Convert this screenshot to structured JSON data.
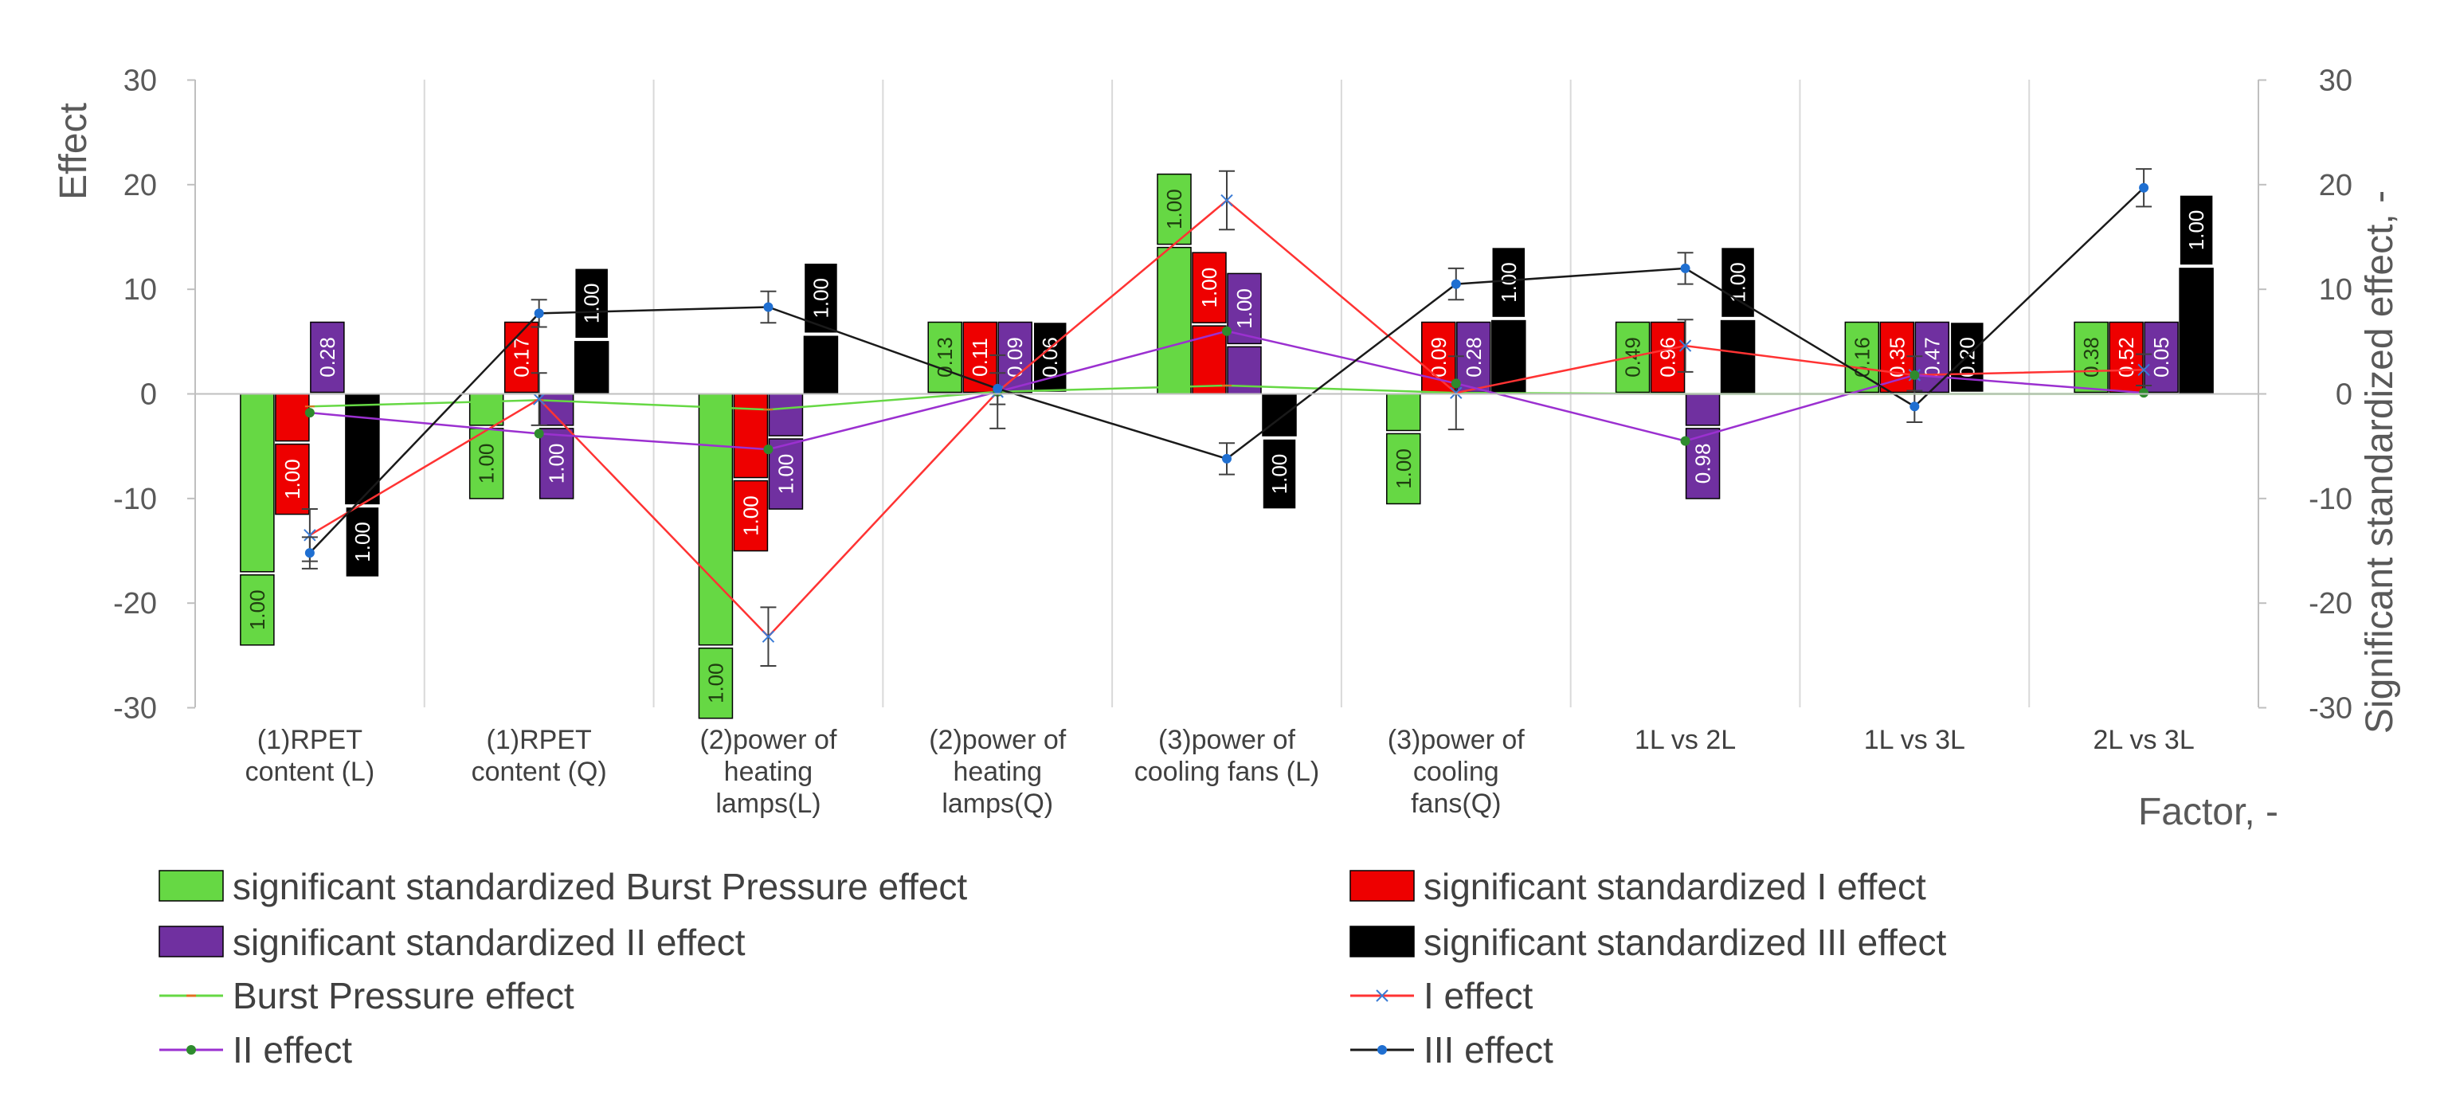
{
  "chart_data": {
    "type": "bar",
    "y_axis_title": "Effect",
    "y2_axis_title": "Significant standardized effect, -",
    "x_axis_title": "Factor, -",
    "ylim": [
      -30,
      30
    ],
    "y2lim": [
      -30,
      30
    ],
    "yticks": [
      30,
      20,
      10,
      0,
      -10,
      -20,
      -30
    ],
    "y2ticks": [
      30,
      20,
      10,
      0,
      -10,
      -20,
      -30
    ],
    "categories": [
      [
        "(1)RPET",
        "content (L)"
      ],
      [
        "(1)RPET",
        "content (Q)"
      ],
      [
        "(2)power of",
        "heating",
        "lamps(L)"
      ],
      [
        "(2)power of",
        "heating",
        "lamps(Q)"
      ],
      [
        "(3)power of",
        "cooling fans (L)"
      ],
      [
        "(3)power of",
        "cooling",
        "fans(Q)"
      ],
      [
        "1L vs 2L"
      ],
      [
        "1L vs 3L"
      ],
      [
        "2L vs 3L"
      ]
    ],
    "bar_series": [
      {
        "name": "significant standardized Burst Pressure effect",
        "color": "#66d844",
        "values": [
          -17,
          -3,
          -24,
          0,
          14,
          -3.5,
          0,
          0,
          0
        ],
        "labels": [
          "1.00",
          "1.00",
          "1.00",
          "0.13",
          "1.00",
          "1.00",
          "0.49",
          "0.16",
          "0.38"
        ]
      },
      {
        "name": "significant standardized I effect",
        "color": "#ee0000",
        "values": [
          -4.5,
          0,
          -8,
          0,
          6.5,
          0,
          0,
          0,
          0
        ],
        "labels": [
          "1.00",
          "0.17",
          "1.00",
          "0.11",
          "1.00",
          "0.09",
          "0.96",
          "0.35",
          "0.52"
        ]
      },
      {
        "name": "significant standardized II effect",
        "color": "#7030a0",
        "values": [
          0,
          -3,
          -4,
          0,
          4.5,
          0,
          -3,
          0,
          0
        ],
        "labels": [
          "0.28",
          "1.00",
          "1.00",
          "0.09",
          "1.00",
          "0.28",
          "0.98",
          "0.47",
          "0.05"
        ]
      },
      {
        "name": "significant standardized III effect",
        "color": "#000000",
        "values": [
          -10.5,
          5,
          5.5,
          0,
          -4,
          7,
          7,
          0,
          12
        ],
        "labels": [
          "1.00",
          "1.00",
          "1.00",
          "0.06",
          "1.00",
          "1.00",
          "1.00",
          "0.20",
          "1.00"
        ]
      }
    ],
    "line_series": [
      {
        "name": "Burst Pressure effect",
        "color": "#66d844",
        "marker": "dash",
        "values": [
          -1.2,
          -0.6,
          -1.5,
          0.2,
          0.8,
          0.1,
          0,
          0,
          0
        ],
        "errors": [
          0,
          0,
          0,
          0,
          0,
          0,
          0,
          0,
          0
        ]
      },
      {
        "name": "I effect",
        "color": "#ff3333",
        "marker": "star",
        "values": [
          -13.5,
          -0.5,
          -23.2,
          0.2,
          18.5,
          0.1,
          4.6,
          1.8,
          2.3
        ],
        "errors": [
          2.5,
          2.5,
          2.8,
          3.5,
          2.8,
          3.5,
          2.5,
          1.8,
          1.5
        ]
      },
      {
        "name": "II effect",
        "color": "#9b30d0",
        "marker": "dot",
        "values": [
          -1.8,
          -3.8,
          -5.3,
          0.2,
          6.0,
          1.0,
          -4.5,
          1.8,
          0.1
        ],
        "errors": [
          0,
          0,
          0,
          0,
          0,
          0,
          0,
          0,
          0
        ]
      },
      {
        "name": "III effect",
        "color": "#1a1a1a",
        "marker": "dot",
        "values": [
          -15.2,
          7.7,
          8.3,
          0.5,
          -6.2,
          10.5,
          12.0,
          -1.2,
          19.7
        ],
        "errors": [
          1.5,
          1.3,
          1.5,
          1.5,
          1.5,
          1.5,
          1.5,
          1.5,
          1.8
        ]
      }
    ]
  }
}
